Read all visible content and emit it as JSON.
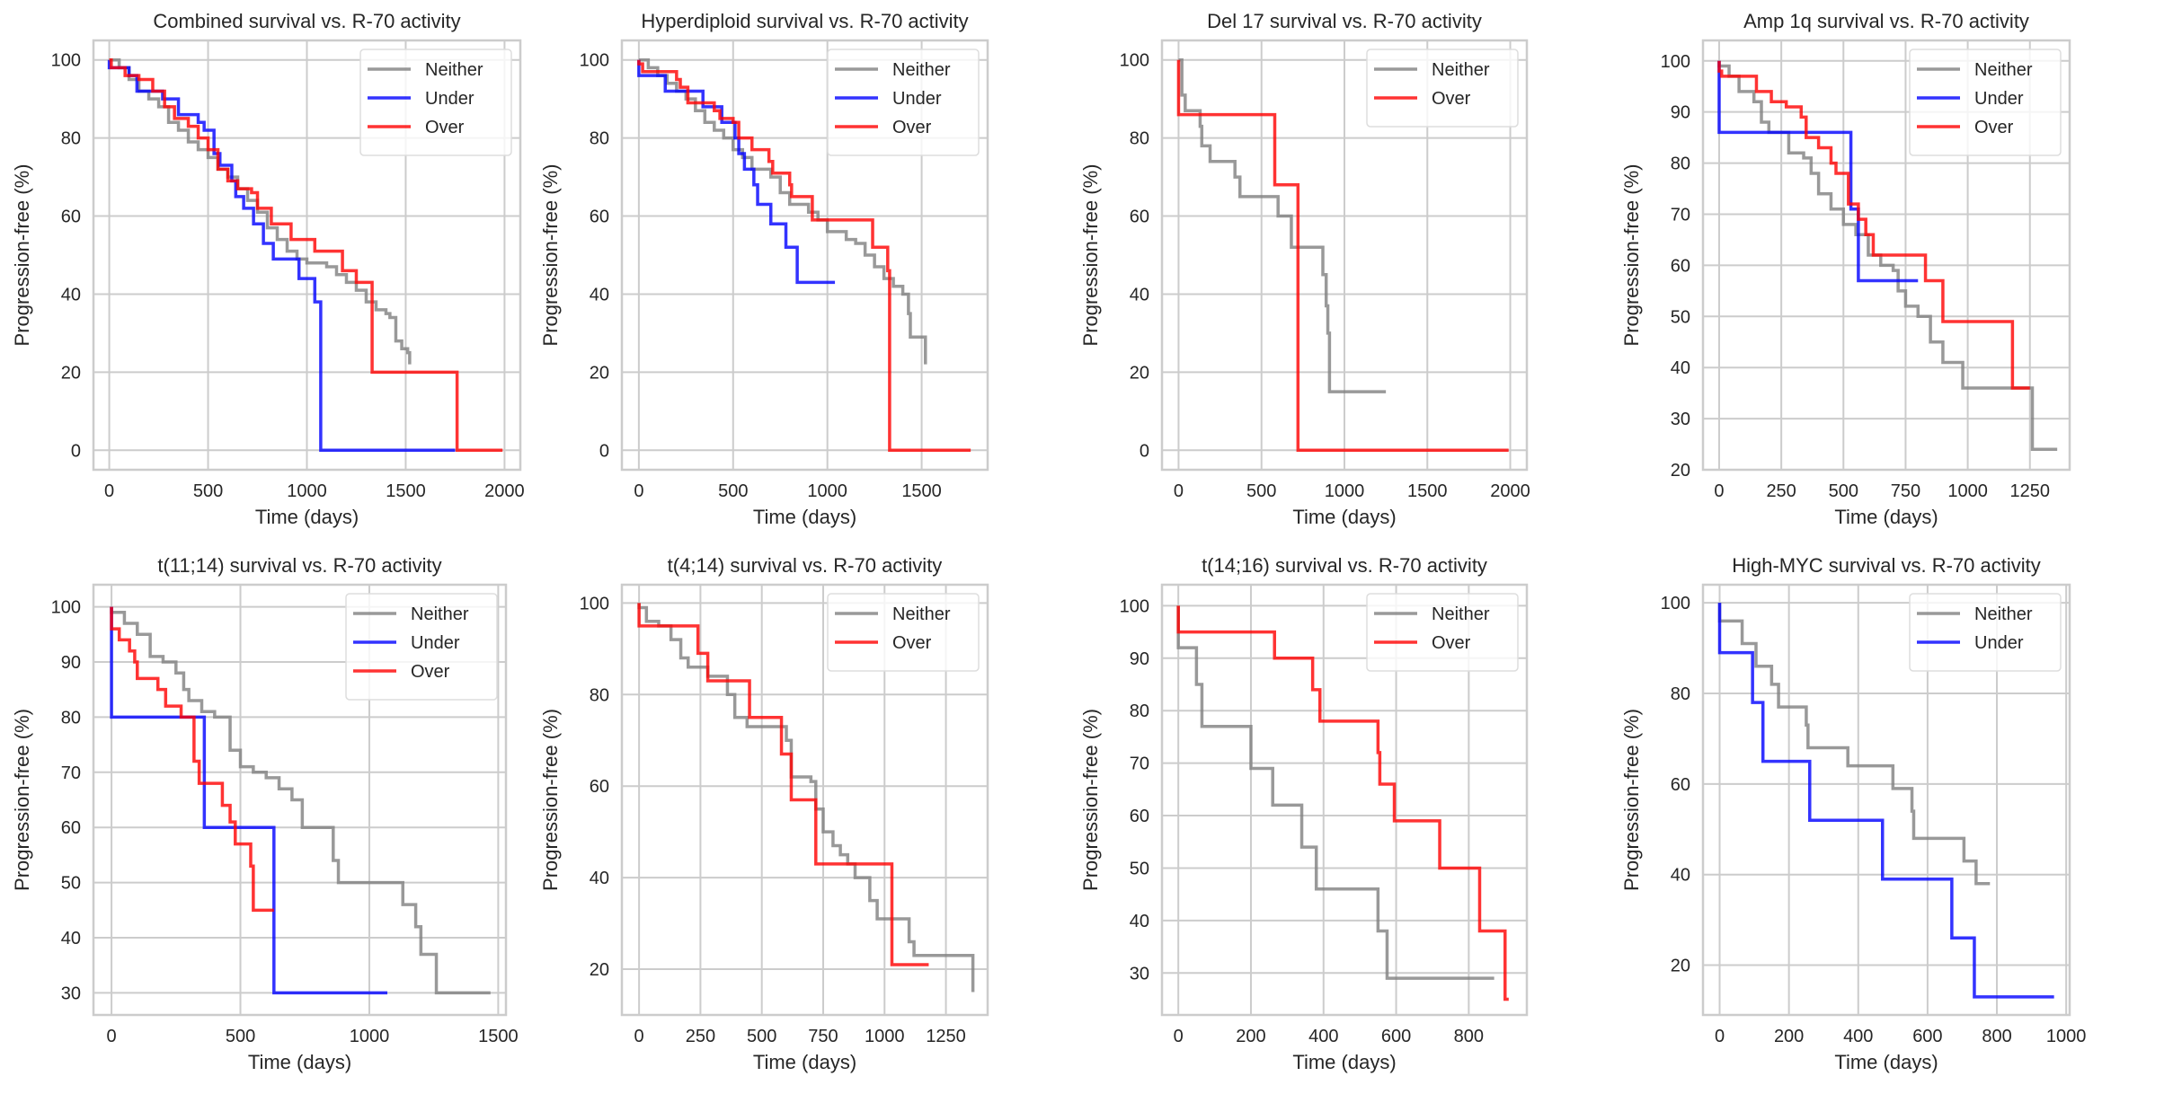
{
  "colors": {
    "Neither": "#808080",
    "Under": "#0000ff",
    "Over": "#ff0000"
  },
  "chart_data": [
    {
      "type": "line",
      "title": "Combined survival vs. R-70 activity",
      "xlabel": "Time (days)",
      "ylabel": "Progression-free (%)",
      "xlim": [
        -80,
        2080
      ],
      "ylim": [
        -5,
        105
      ],
      "xticks": [
        0,
        500,
        1000,
        1500,
        2000
      ],
      "yticks": [
        0,
        20,
        40,
        60,
        80,
        100
      ],
      "grid": true,
      "legend": "top-right",
      "series": [
        {
          "name": "Neither",
          "x": [
            0,
            50,
            100,
            150,
            200,
            250,
            300,
            350,
            400,
            450,
            500,
            550,
            600,
            650,
            700,
            750,
            800,
            850,
            900,
            950,
            1000,
            1050,
            1100,
            1150,
            1200,
            1250,
            1300,
            1350,
            1400,
            1420,
            1450,
            1480,
            1510,
            1520
          ],
          "y": [
            100,
            98,
            95,
            92,
            90,
            88,
            84,
            82,
            79,
            77,
            75,
            72,
            70,
            67,
            64,
            61,
            57,
            54,
            51,
            49,
            48,
            48,
            47,
            45,
            43,
            41,
            38,
            36,
            35,
            34,
            28,
            26,
            25,
            22
          ]
        },
        {
          "name": "Under",
          "x": [
            0,
            100,
            140,
            270,
            350,
            450,
            480,
            530,
            560,
            620,
            640,
            680,
            730,
            780,
            830,
            960,
            1040,
            1070,
            1750
          ],
          "y": [
            98,
            96,
            92,
            90,
            86,
            84,
            82,
            76,
            73,
            69,
            65,
            62,
            58,
            53,
            49,
            44,
            38,
            0,
            0
          ]
        },
        {
          "name": "Over",
          "x": [
            0,
            10,
            80,
            150,
            220,
            280,
            330,
            400,
            450,
            500,
            550,
            600,
            650,
            720,
            750,
            820,
            920,
            1040,
            1180,
            1250,
            1330,
            1760,
            1990
          ],
          "y": [
            100,
            98,
            96,
            95,
            92,
            88,
            85,
            83,
            80,
            77,
            72,
            69,
            67,
            66,
            62,
            58,
            54,
            51,
            46,
            43,
            20,
            0,
            0
          ]
        }
      ]
    },
    {
      "type": "line",
      "title": "Hyperdiploid survival vs. R-70 activity",
      "xlabel": "Time (days)",
      "ylabel": "Progression-free (%)",
      "xlim": [
        -90,
        1850
      ],
      "ylim": [
        -5,
        105
      ],
      "xticks": [
        0,
        500,
        1000,
        1500
      ],
      "yticks": [
        0,
        20,
        40,
        60,
        80,
        100
      ],
      "grid": true,
      "legend": "top-right",
      "series": [
        {
          "name": "Neither",
          "x": [
            0,
            50,
            100,
            150,
            200,
            250,
            300,
            350,
            400,
            450,
            500,
            550,
            600,
            650,
            700,
            750,
            800,
            850,
            900,
            950,
            1000,
            1050,
            1100,
            1150,
            1200,
            1250,
            1300,
            1350,
            1400,
            1430,
            1440,
            1500,
            1520
          ],
          "y": [
            100,
            98,
            96,
            94,
            92,
            90,
            87,
            84,
            82,
            80,
            77,
            75,
            72,
            72,
            70,
            66,
            63,
            63,
            61,
            59,
            56,
            56,
            54,
            53,
            50,
            47,
            44,
            42,
            40,
            35,
            29,
            29,
            22
          ]
        },
        {
          "name": "Under",
          "x": [
            0,
            140,
            340,
            440,
            510,
            530,
            560,
            610,
            630,
            700,
            780,
            840,
            1040
          ],
          "y": [
            96,
            92,
            88,
            84,
            80,
            76,
            72,
            68,
            63,
            58,
            52,
            43,
            43
          ]
        },
        {
          "name": "Over",
          "x": [
            0,
            20,
            200,
            220,
            260,
            400,
            430,
            500,
            530,
            600,
            690,
            710,
            800,
            810,
            920,
            1240,
            1320,
            1330,
            1760
          ],
          "y": [
            99,
            97,
            95,
            93,
            89,
            87,
            85,
            84,
            80,
            77,
            74,
            71,
            68,
            65,
            59,
            52,
            46,
            0,
            0
          ]
        }
      ]
    },
    {
      "type": "line",
      "title": "Del 17 survival vs. R-70 activity",
      "xlabel": "Time (days)",
      "ylabel": "Progression-free (%)",
      "xlim": [
        -100,
        2100
      ],
      "ylim": [
        -5,
        105
      ],
      "xticks": [
        0,
        500,
        1000,
        1500,
        2000
      ],
      "yticks": [
        0,
        20,
        40,
        60,
        80,
        100
      ],
      "grid": true,
      "legend": "top-right",
      "series": [
        {
          "name": "Neither",
          "x": [
            0,
            20,
            40,
            130,
            140,
            190,
            340,
            370,
            600,
            680,
            870,
            890,
            900,
            910,
            1250
          ],
          "y": [
            100,
            91,
            87,
            83,
            78,
            74,
            70,
            65,
            60,
            52,
            45,
            37,
            30,
            15,
            15
          ]
        },
        {
          "name": "Over",
          "x": [
            0,
            580,
            720,
            1990
          ],
          "y": [
            86,
            68,
            0,
            0
          ]
        }
      ]
    },
    {
      "type": "line",
      "title": "Amp 1q survival vs. R-70 activity",
      "xlabel": "Time (days)",
      "ylabel": "Progression-free (%)",
      "xlim": [
        -65,
        1410
      ],
      "ylim": [
        20,
        104
      ],
      "xticks": [
        0,
        250,
        500,
        750,
        1000,
        1250
      ],
      "yticks": [
        20,
        30,
        40,
        50,
        60,
        70,
        80,
        90,
        100
      ],
      "grid": true,
      "legend": "top-right",
      "series": [
        {
          "name": "Neither",
          "x": [
            0,
            40,
            80,
            140,
            170,
            200,
            250,
            280,
            340,
            370,
            400,
            450,
            500,
            550,
            600,
            650,
            700,
            720,
            750,
            800,
            850,
            900,
            980,
            1260,
            1360
          ],
          "y": [
            99,
            97,
            94,
            92,
            88,
            86,
            86,
            82,
            81,
            78,
            74,
            71,
            68,
            66,
            62,
            60,
            59,
            55,
            52,
            50,
            45,
            41,
            36,
            24,
            24
          ]
        },
        {
          "name": "Under",
          "x": [
            0,
            530,
            560,
            800
          ],
          "y": [
            86,
            71,
            57,
            57
          ]
        },
        {
          "name": "Over",
          "x": [
            0,
            10,
            150,
            210,
            270,
            330,
            350,
            400,
            450,
            470,
            520,
            560,
            590,
            620,
            830,
            900,
            1180,
            1250
          ],
          "y": [
            98,
            97,
            94,
            92,
            91,
            89,
            85,
            83,
            80,
            78,
            72,
            69,
            66,
            62,
            57,
            49,
            36,
            36
          ]
        }
      ]
    },
    {
      "type": "line",
      "title": "t(11;14) survival vs. R-70 activity",
      "xlabel": "Time (days)",
      "ylabel": "Progression-free (%)",
      "xlim": [
        -70,
        1530
      ],
      "ylim": [
        26,
        104
      ],
      "xticks": [
        0,
        500,
        1000,
        1500
      ],
      "yticks": [
        30,
        40,
        50,
        60,
        70,
        80,
        90,
        100
      ],
      "grid": true,
      "legend": "top-right",
      "series": [
        {
          "name": "Neither",
          "x": [
            0,
            50,
            100,
            150,
            200,
            250,
            280,
            300,
            350,
            400,
            440,
            460,
            500,
            550,
            600,
            650,
            700,
            740,
            820,
            860,
            880,
            1130,
            1180,
            1200,
            1260,
            1470
          ],
          "y": [
            99,
            97,
            95,
            91,
            90,
            88,
            85,
            83,
            81,
            80,
            80,
            74,
            71,
            70,
            69,
            67,
            65,
            60,
            60,
            54,
            50,
            46,
            42,
            37,
            30,
            30
          ]
        },
        {
          "name": "Under",
          "x": [
            0,
            360,
            630,
            1070
          ],
          "y": [
            80,
            60,
            30,
            30
          ]
        },
        {
          "name": "Over",
          "x": [
            0,
            30,
            70,
            90,
            100,
            180,
            210,
            270,
            320,
            340,
            430,
            460,
            480,
            540,
            550,
            630
          ],
          "y": [
            96,
            94,
            92,
            90,
            87,
            85,
            82,
            80,
            72,
            68,
            64,
            61,
            57,
            53,
            45,
            45
          ]
        }
      ]
    },
    {
      "type": "line",
      "title": "t(4;14) survival vs. R-70 activity",
      "xlabel": "Time (days)",
      "ylabel": "Progression-free (%)",
      "xlim": [
        -70,
        1420
      ],
      "ylim": [
        10,
        104
      ],
      "xticks": [
        0,
        250,
        500,
        750,
        1000,
        1250
      ],
      "yticks": [
        20,
        40,
        60,
        80,
        100
      ],
      "grid": true,
      "legend": "top-right",
      "series": [
        {
          "name": "Neither",
          "x": [
            0,
            30,
            80,
            130,
            170,
            200,
            280,
            360,
            390,
            440,
            600,
            620,
            700,
            720,
            750,
            790,
            820,
            850,
            880,
            940,
            970,
            1100,
            1120,
            1360
          ],
          "y": [
            99,
            96,
            95,
            92,
            88,
            86,
            84,
            80,
            75,
            73,
            70,
            62,
            61,
            55,
            50,
            47,
            45,
            43,
            40,
            35,
            31,
            26,
            23,
            15
          ]
        },
        {
          "name": "Over",
          "x": [
            0,
            240,
            280,
            450,
            580,
            620,
            720,
            1030,
            1180
          ],
          "y": [
            95,
            89,
            83,
            75,
            67,
            57,
            43,
            21,
            21
          ]
        }
      ]
    },
    {
      "type": "line",
      "title": "t(14;16) survival vs. R-70 activity",
      "xlabel": "Time (days)",
      "ylabel": "Progression-free (%)",
      "xlim": [
        -45,
        960
      ],
      "ylim": [
        22,
        104
      ],
      "xticks": [
        0,
        200,
        400,
        600,
        800
      ],
      "yticks": [
        30,
        40,
        50,
        60,
        70,
        80,
        90,
        100
      ],
      "grid": true,
      "legend": "top-right",
      "series": [
        {
          "name": "Neither",
          "x": [
            0,
            50,
            65,
            200,
            260,
            340,
            380,
            550,
            575,
            870
          ],
          "y": [
            92,
            85,
            77,
            69,
            62,
            54,
            46,
            38,
            29,
            29
          ]
        },
        {
          "name": "Over",
          "x": [
            0,
            265,
            370,
            390,
            550,
            555,
            595,
            720,
            830,
            900,
            910
          ],
          "y": [
            95,
            90,
            84,
            78,
            72,
            66,
            59,
            50,
            38,
            25,
            25
          ]
        }
      ]
    },
    {
      "type": "line",
      "title": "High-MYC survival vs. R-70 activity",
      "xlabel": "Time (days)",
      "ylabel": "Progression-free (%)",
      "xlim": [
        -48,
        1010
      ],
      "ylim": [
        9,
        104
      ],
      "xticks": [
        0,
        200,
        400,
        600,
        800,
        1000
      ],
      "yticks": [
        20,
        40,
        60,
        80,
        100
      ],
      "grid": true,
      "legend": "top-right",
      "series": [
        {
          "name": "Neither",
          "x": [
            0,
            65,
            105,
            150,
            170,
            250,
            255,
            370,
            500,
            555,
            560,
            705,
            740,
            780
          ],
          "y": [
            96,
            91,
            86,
            82,
            77,
            73,
            68,
            64,
            59,
            54,
            48,
            43,
            38,
            38
          ]
        },
        {
          "name": "Under",
          "x": [
            0,
            95,
            125,
            260,
            470,
            670,
            735,
            965
          ],
          "y": [
            89,
            78,
            65,
            52,
            39,
            26,
            13,
            13
          ]
        }
      ]
    }
  ]
}
